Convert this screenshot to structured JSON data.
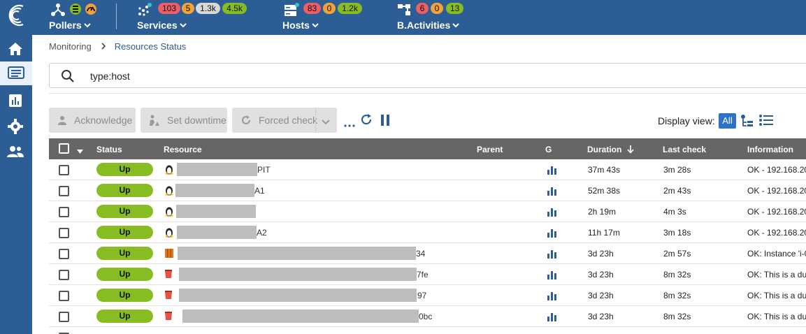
{
  "header": {
    "pollers": {
      "label": "Pollers"
    },
    "services": {
      "label": "Services",
      "counts": {
        "critical": "103",
        "warning": "5",
        "unknown": "1.3k",
        "ok": "4.5k"
      }
    },
    "hosts": {
      "label": "Hosts",
      "counts": {
        "down": "83",
        "unreachable": "0",
        "up": "1.2k"
      }
    },
    "bactivities": {
      "label": "B.Activities",
      "counts": {
        "critical": "6",
        "warning": "0",
        "ok": "13"
      }
    }
  },
  "sidebar": {
    "items": [
      "home-icon",
      "monitoring-icon",
      "reporting-icon",
      "configuration-icon",
      "administration-icon"
    ]
  },
  "breadcrumb": {
    "parent": "Monitoring",
    "current": "Resources Status"
  },
  "search": {
    "value": "type:host"
  },
  "toolbar": {
    "acknowledge": "Acknowledge",
    "set_downtime": "Set downtime",
    "forced_check": "Forced check",
    "display_view_label": "Display view:",
    "view_all": "All"
  },
  "table": {
    "columns": {
      "status": "Status",
      "resource": "Resource",
      "parent": "Parent",
      "graph": "G",
      "duration": "Duration",
      "last_check": "Last check",
      "information": "Information"
    },
    "rows": [
      {
        "status": "Up",
        "icon": "linux-icon",
        "suffix": "PIT",
        "duration": "37m 43s",
        "last_check": "3m 28s",
        "information": "OK - 192.168.20"
      },
      {
        "status": "Up",
        "icon": "linux-icon",
        "suffix": "A1",
        "duration": "52m 38s",
        "last_check": "2m 43s",
        "information": "OK - 192.168.20"
      },
      {
        "status": "Up",
        "icon": "linux-icon",
        "suffix": "",
        "duration": "2h 19m",
        "last_check": "4m 3s",
        "information": "OK - 192.168.20"
      },
      {
        "status": "Up",
        "icon": "linux-icon",
        "suffix": "A2",
        "duration": "11h 17m",
        "last_check": "3m 18s",
        "information": "OK - 192.168.20"
      },
      {
        "status": "Up",
        "icon": "aws-ec2-icon",
        "suffix": "34",
        "duration": "3d 23h",
        "last_check": "2m 57s",
        "information": "OK: Instance 'i-0"
      },
      {
        "status": "Up",
        "icon": "aws-bucket-icon",
        "suffix": "7fe",
        "duration": "3d 23h",
        "last_check": "8m 32s",
        "information": "OK: This is a du"
      },
      {
        "status": "Up",
        "icon": "aws-bucket-icon",
        "suffix": "97",
        "duration": "3d 23h",
        "last_check": "8m 32s",
        "information": "OK: This is a du"
      },
      {
        "status": "Up",
        "icon": "aws-bucket-icon",
        "suffix": "0bc",
        "duration": "3d 23h",
        "last_check": "8m 32s",
        "information": "OK: This is a du"
      }
    ]
  },
  "colors": {
    "brand": "#2c5d94",
    "status_up": "#87bd23",
    "critical": "#ed5e67",
    "warning": "#f2a23b",
    "unknown": "#d9d9d9",
    "accent": "#2c73c8"
  }
}
